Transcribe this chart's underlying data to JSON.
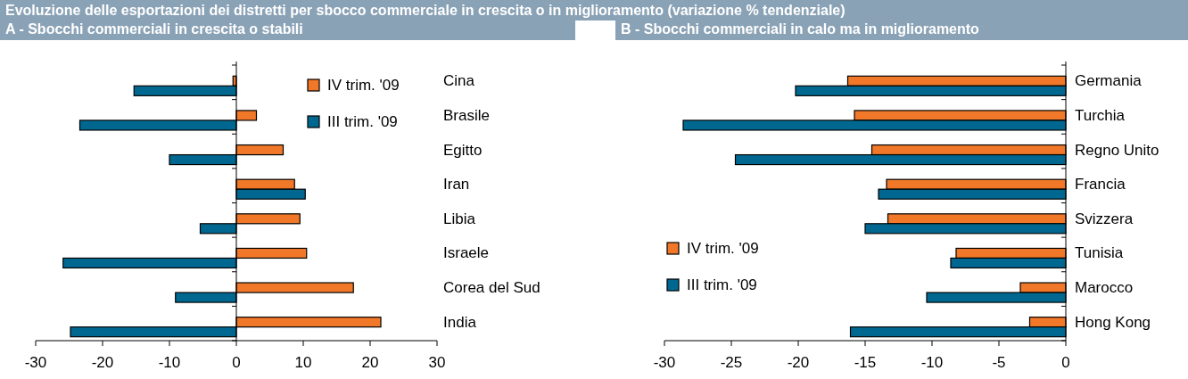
{
  "chart_data": [
    {
      "type": "bar",
      "orientation": "horizontal",
      "title": "Evoluzione delle esportazioni dei distretti per sbocco commerciale in crescita o in miglioramento (variazione % tendenziale)",
      "subtitle": "A - Sbocchi commerciali in crescita o stabili",
      "categories": [
        "Cina",
        "Brasile",
        "Egitto",
        "Iran",
        "Libia",
        "Israele",
        "Corea del Sud",
        "India"
      ],
      "series": [
        {
          "name": "IV trim. '09",
          "color": "#f07828",
          "values": [
            -0.5,
            3.0,
            7.0,
            8.7,
            9.5,
            10.5,
            17.5,
            21.6
          ]
        },
        {
          "name": "III trim. '09",
          "color": "#006890",
          "values": [
            -15.3,
            -23.4,
            -10.0,
            10.3,
            -5.4,
            -25.9,
            -9.1,
            -24.8
          ]
        }
      ],
      "xlim": [
        -30,
        30
      ],
      "xticks": [
        -30,
        -20,
        -10,
        0,
        10,
        20,
        30
      ],
      "legend": "top right"
    },
    {
      "type": "bar",
      "orientation": "horizontal",
      "subtitle": "B - Sbocchi commerciali in calo ma in miglioramento",
      "categories": [
        "Germania",
        "Turchia",
        "Regno Unito",
        "Francia",
        "Svizzera",
        "Tunisia",
        "Marocco",
        "Hong Kong"
      ],
      "series": [
        {
          "name": "IV trim. '09",
          "color": "#f07828",
          "values": [
            -16.3,
            -15.8,
            -14.5,
            -13.4,
            -13.3,
            -8.2,
            -3.4,
            -2.7
          ]
        },
        {
          "name": "III trim. '09",
          "color": "#006890",
          "values": [
            -20.2,
            -28.6,
            -24.7,
            -14.0,
            -15.0,
            -8.6,
            -10.4,
            -16.1
          ]
        }
      ],
      "xlim": [
        -30,
        0
      ],
      "xticks": [
        -30,
        -25,
        -20,
        -15,
        -10,
        -5,
        0
      ],
      "legend": "bottom left"
    }
  ]
}
